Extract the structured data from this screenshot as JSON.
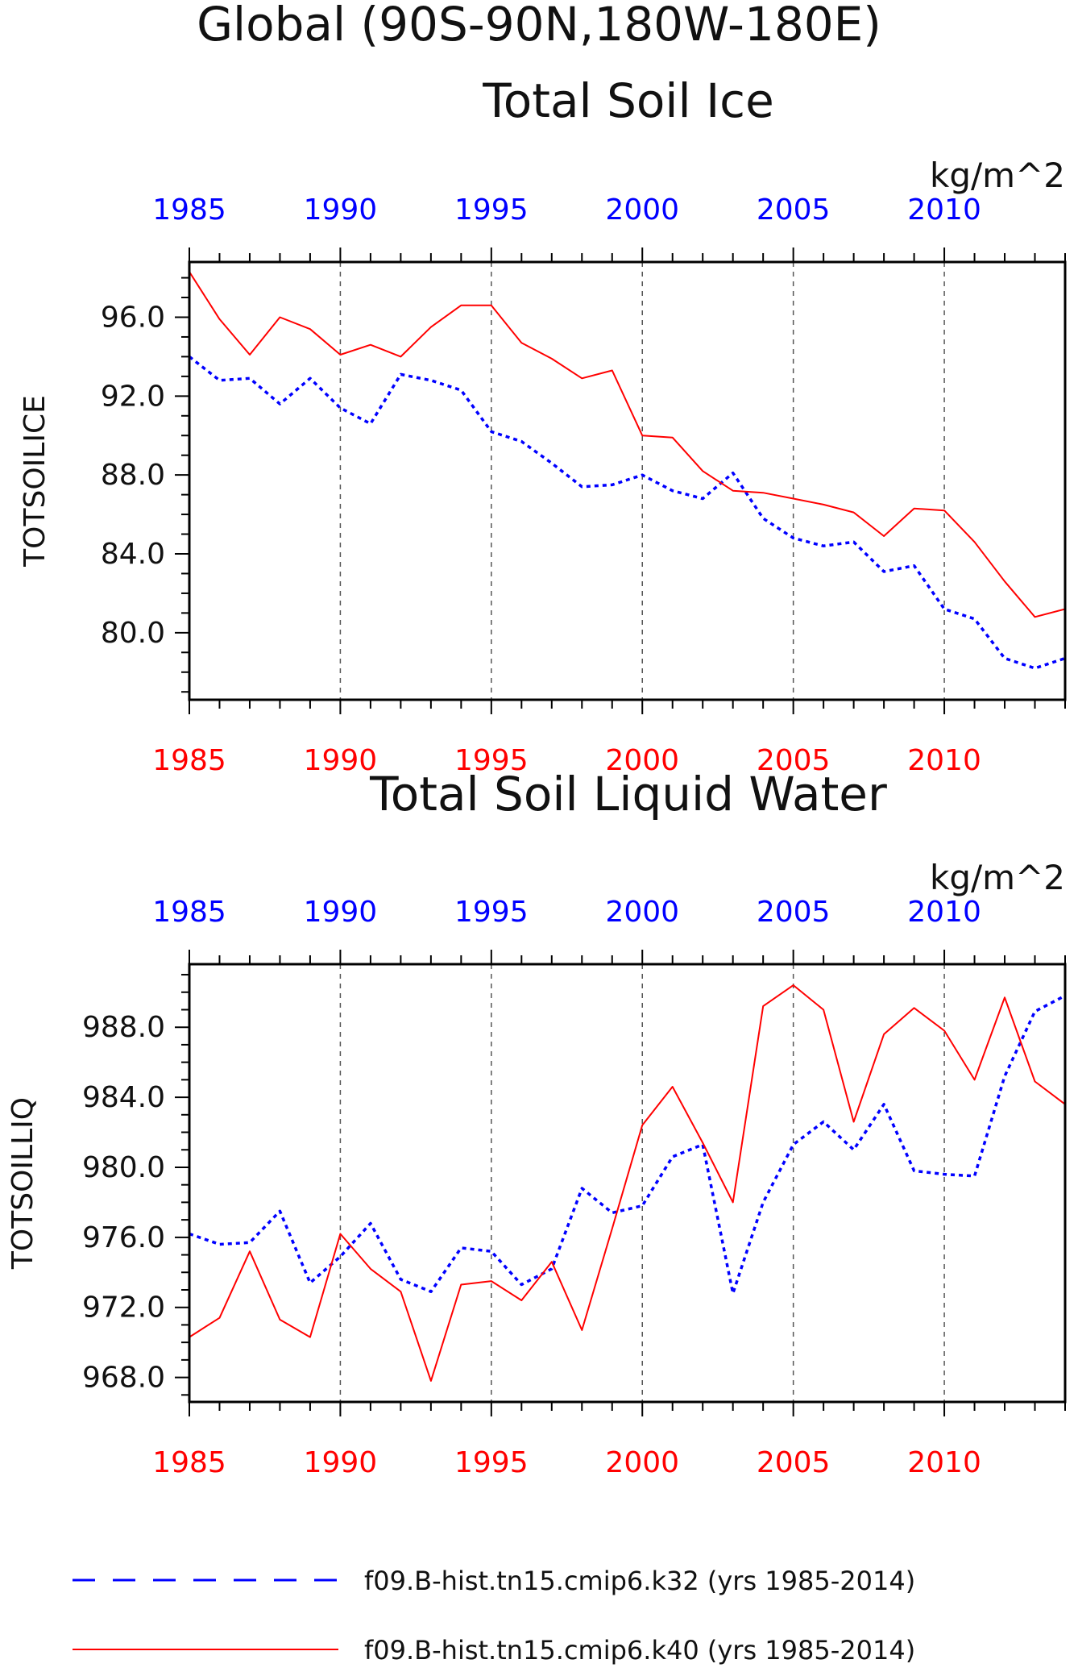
{
  "figure": {
    "title": "Global (90S-90N,180W-180E)",
    "colors": {
      "blue": "#0000ff",
      "red": "#ff0000",
      "grid": "#555555",
      "axis": "#000000"
    }
  },
  "chart_data": [
    {
      "type": "line",
      "title": "Total Soil Ice",
      "units": "kg/m^2",
      "ylabel": "TOTSOILICE",
      "xlabel": "",
      "xlim": [
        1985,
        2014
      ],
      "ylim": [
        76.6,
        98.8
      ],
      "yticks": [
        "96.0",
        "92.0",
        "88.0",
        "84.0",
        "80.0"
      ],
      "xticks_top": [
        "1985",
        "1990",
        "1995",
        "2000",
        "2005",
        "2010"
      ],
      "xticks_bottom": [
        "1985",
        "1990",
        "1995",
        "2000",
        "2005",
        "2010"
      ],
      "grid": "vertical dashed at 1990, 1995, 2000, 2005, 2010",
      "x": [
        1985,
        1986,
        1987,
        1988,
        1989,
        1990,
        1991,
        1992,
        1993,
        1994,
        1995,
        1996,
        1997,
        1998,
        1999,
        2000,
        2001,
        2002,
        2003,
        2004,
        2005,
        2006,
        2007,
        2008,
        2009,
        2010,
        2011,
        2012,
        2013,
        2014
      ],
      "series": [
        {
          "name": "f09.B-hist.tn15.cmip6.k32 (yrs 1985-2014)",
          "color": "#0000ff",
          "style": "dashed",
          "values": [
            94.0,
            92.8,
            92.9,
            91.6,
            92.9,
            91.4,
            90.6,
            93.1,
            92.8,
            92.3,
            90.2,
            89.7,
            88.6,
            87.4,
            87.5,
            88.0,
            87.2,
            86.8,
            88.1,
            85.8,
            84.8,
            84.4,
            84.6,
            83.1,
            83.4,
            81.2,
            80.7,
            78.7,
            78.2,
            78.7
          ]
        },
        {
          "name": "f09.B-hist.tn15.cmip6.k40 (yrs 1985-2014)",
          "color": "#ff0000",
          "style": "solid",
          "values": [
            98.3,
            95.9,
            94.1,
            96.0,
            95.4,
            94.1,
            94.6,
            94.0,
            95.5,
            96.6,
            96.6,
            94.7,
            93.9,
            92.9,
            93.3,
            90.0,
            89.9,
            88.2,
            87.2,
            87.1,
            86.8,
            86.5,
            86.1,
            84.9,
            86.3,
            86.2,
            84.6,
            82.6,
            80.8,
            81.2
          ]
        }
      ]
    },
    {
      "type": "line",
      "title": "Total Soil Liquid Water",
      "units": "kg/m^2",
      "ylabel": "TOTSOILLIQ",
      "xlabel": "",
      "xlim": [
        1985,
        2014
      ],
      "ylim": [
        966.6,
        991.6
      ],
      "yticks": [
        "988.0",
        "984.0",
        "980.0",
        "976.0",
        "972.0",
        "968.0"
      ],
      "xticks_top": [
        "1985",
        "1990",
        "1995",
        "2000",
        "2005",
        "2010"
      ],
      "xticks_bottom": [
        "1985",
        "1990",
        "1995",
        "2000",
        "2005",
        "2010"
      ],
      "grid": "vertical dashed at 1990, 1995, 2000, 2005, 2010",
      "x": [
        1985,
        1986,
        1987,
        1988,
        1989,
        1990,
        1991,
        1992,
        1993,
        1994,
        1995,
        1996,
        1997,
        1998,
        1999,
        2000,
        2001,
        2002,
        2003,
        2004,
        2005,
        2006,
        2007,
        2008,
        2009,
        2010,
        2011,
        2012,
        2013,
        2014
      ],
      "series": [
        {
          "name": "f09.B-hist.tn15.cmip6.k32 (yrs 1985-2014)",
          "color": "#0000ff",
          "style": "dashed",
          "values": [
            976.2,
            975.6,
            975.7,
            977.5,
            973.4,
            974.9,
            976.8,
            973.6,
            972.9,
            975.4,
            975.2,
            973.3,
            974.2,
            978.8,
            977.4,
            977.8,
            980.6,
            981.3,
            972.8,
            978.0,
            981.3,
            982.6,
            981.0,
            983.6,
            979.8,
            979.6,
            979.5,
            985.2,
            988.9,
            989.8
          ]
        },
        {
          "name": "f09.B-hist.tn15.cmip6.k40 (yrs 1985-2014)",
          "color": "#ff0000",
          "style": "solid",
          "values": [
            970.3,
            971.4,
            975.2,
            971.3,
            970.3,
            976.2,
            974.2,
            972.9,
            967.8,
            973.3,
            973.5,
            972.4,
            974.6,
            970.7,
            976.5,
            982.4,
            984.6,
            981.4,
            978.0,
            989.2,
            990.4,
            989.0,
            982.6,
            987.6,
            989.1,
            987.8,
            985.0,
            989.7,
            984.9,
            983.6
          ]
        }
      ]
    }
  ],
  "legend": {
    "placement": "bottom",
    "items": [
      {
        "label": "f09.B-hist.tn15.cmip6.k32 (yrs 1985-2014)",
        "color": "#0000ff",
        "style": "dashed"
      },
      {
        "label": "f09.B-hist.tn15.cmip6.k40 (yrs 1985-2014)",
        "color": "#ff0000",
        "style": "solid"
      }
    ]
  }
}
